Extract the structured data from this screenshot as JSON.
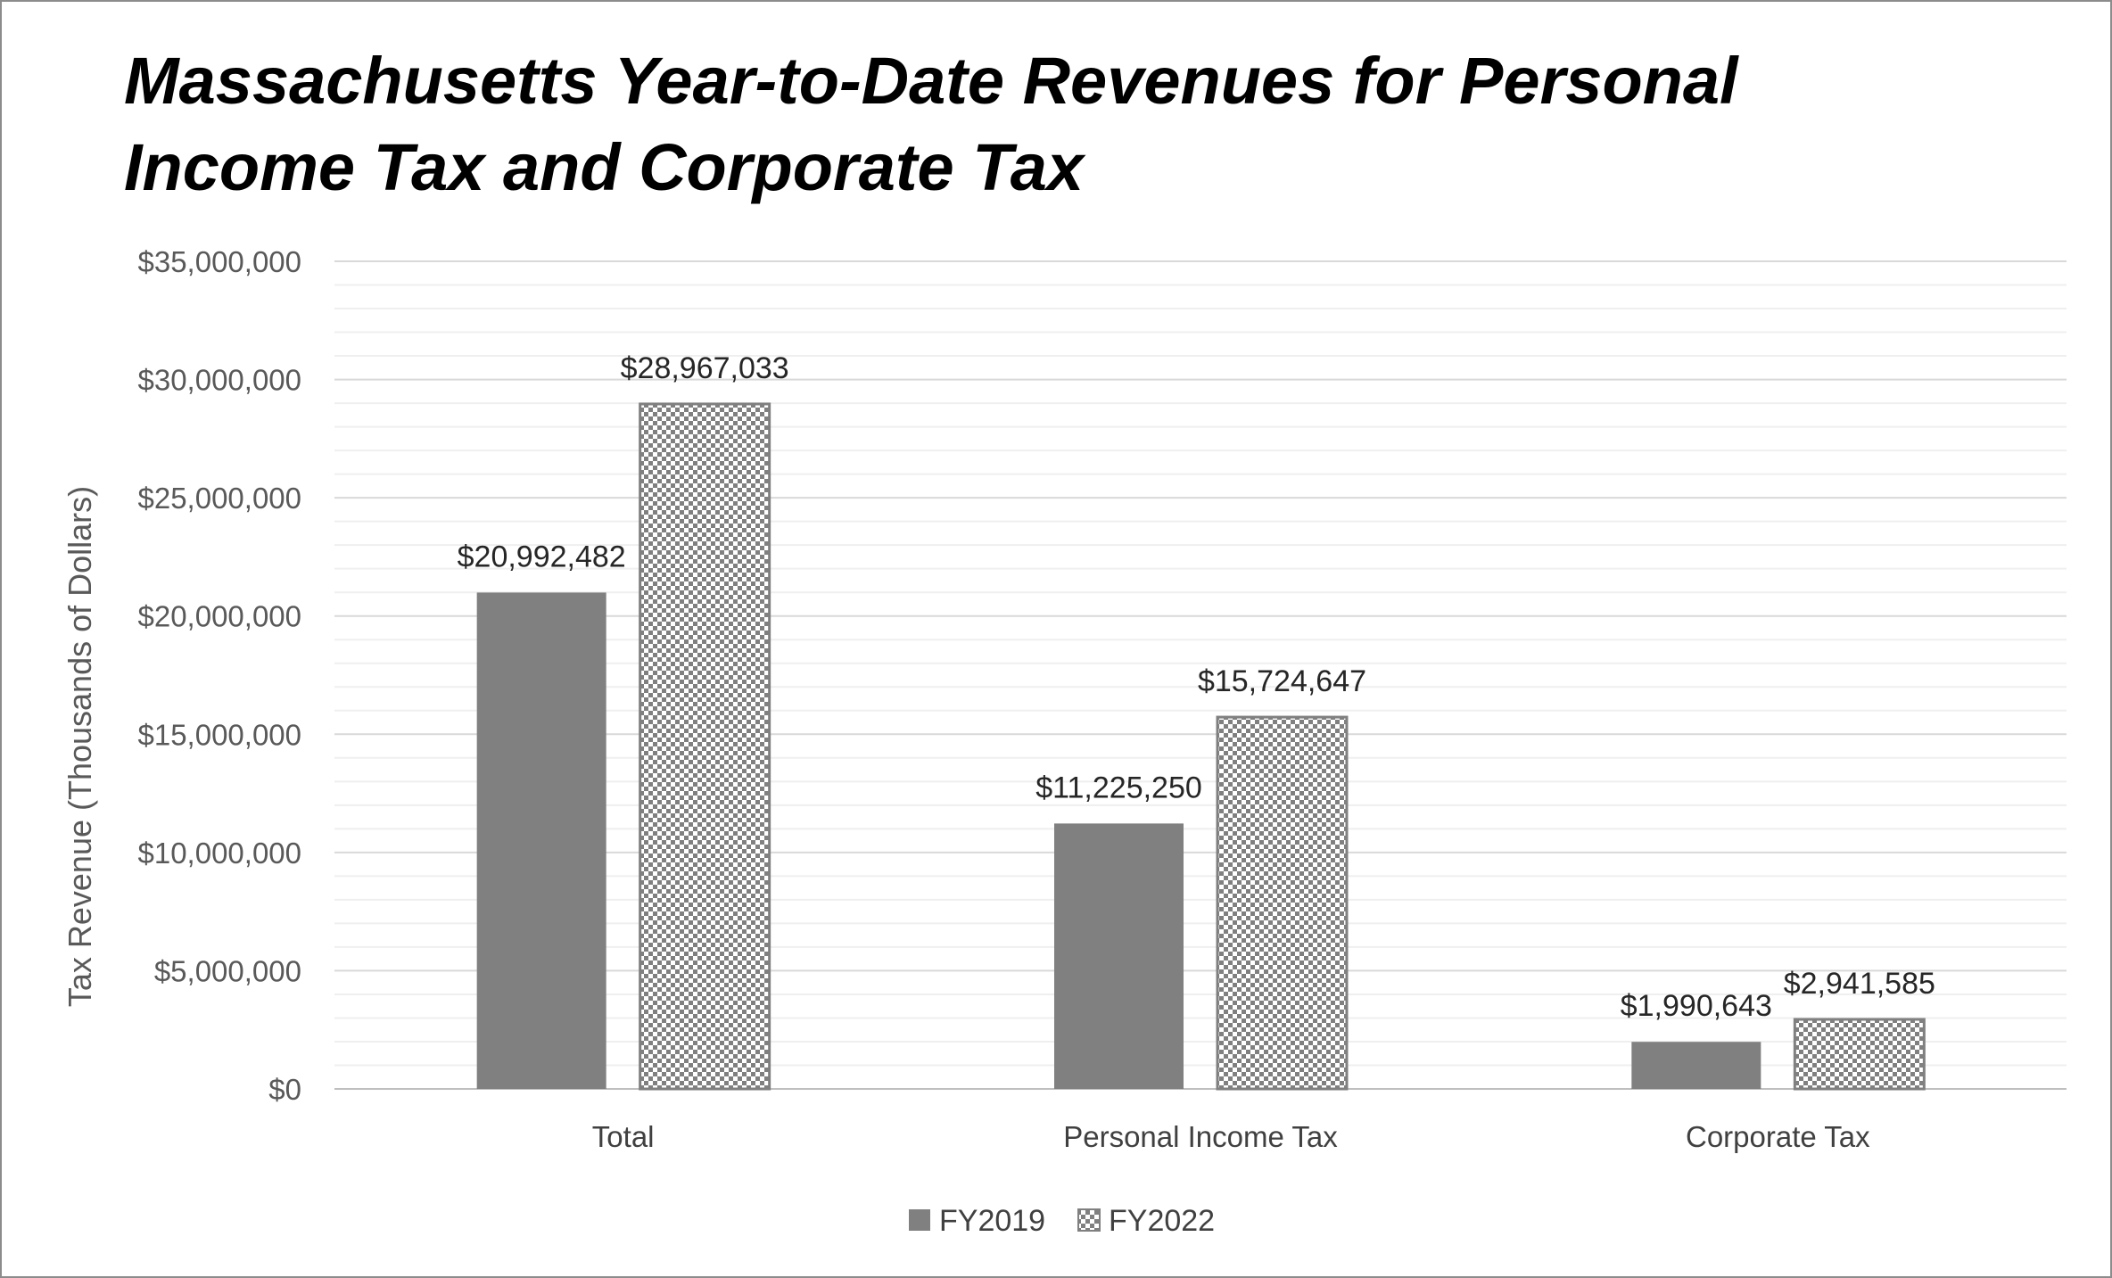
{
  "chart_data": {
    "type": "bar",
    "title": "Massachusetts Year-to-Date Revenues for Personal Income Tax and Corporate Tax",
    "xlabel": "",
    "ylabel": "Tax Revenue  (Thousands of Dollars)",
    "categories": [
      "Total",
      "Personal Income Tax",
      "Corporate Tax"
    ],
    "series": [
      {
        "name": "FY2019",
        "values": [
          20992482,
          11225250,
          1990643
        ],
        "labels": [
          "$20,992,482",
          "$11,225,250",
          "$1,990,643"
        ],
        "color": "#808080",
        "fill": "solid"
      },
      {
        "name": "FY2022",
        "values": [
          28967033,
          15724647,
          2941585
        ],
        "labels": [
          "$28,967,033",
          "$15,724,647",
          "$2,941,585"
        ],
        "color": "#808080",
        "fill": "checkerboard"
      }
    ],
    "ylim": [
      0,
      35000000
    ],
    "yticks": [
      0,
      5000000,
      10000000,
      15000000,
      20000000,
      25000000,
      30000000,
      35000000
    ],
    "ytick_labels": [
      "$0",
      "$5,000,000",
      "$10,000,000",
      "$15,000,000",
      "$20,000,000",
      "$25,000,000",
      "$30,000,000",
      "$35,000,000"
    ],
    "grid": true,
    "legend_position": "bottom"
  },
  "colors": {
    "bar": "#808080",
    "major_grid": "#d9d9d9",
    "minor_grid": "#efefef",
    "frame_border": "#8c8c8c"
  }
}
